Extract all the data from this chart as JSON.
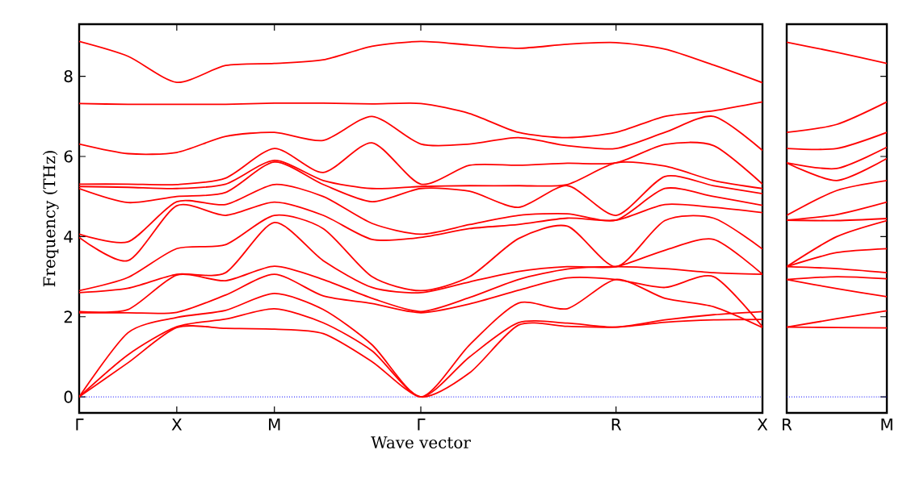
{
  "chart_data": [
    {
      "type": "line",
      "xlabel": "Wave vector",
      "ylabel": "Frequency (THz)",
      "categories": [
        "Γ",
        null,
        "X",
        null,
        "M",
        null,
        null,
        "Γ",
        null,
        null,
        null,
        "R",
        null,
        null,
        "X"
      ],
      "ylim": [
        -0.4,
        9.3
      ],
      "yticks": [
        0,
        2,
        4,
        6,
        8
      ],
      "ref_lines": [
        {
          "axis": "y",
          "value": 0,
          "color": "#0000ff",
          "line_style": "dotted"
        }
      ],
      "series": [
        {
          "color": "#ff0000",
          "values": [
            0,
            0.85,
            1.73,
            1.71,
            1.69,
            1.58,
            0.88,
            0,
            0.6,
            1.79,
            1.76,
            1.74,
            1.86,
            1.92,
            1.93
          ]
        },
        {
          "color": "#ff0000",
          "values": [
            0,
            1.05,
            1.75,
            1.94,
            2.2,
            1.85,
            1.15,
            0,
            1.0,
            1.85,
            1.84,
            1.74,
            1.92,
            2.05,
            2.13
          ]
        },
        {
          "color": "#ff0000",
          "values": [
            0,
            1.6,
            1.98,
            2.16,
            2.58,
            2.18,
            1.3,
            0,
            1.3,
            2.34,
            2.2,
            2.93,
            2.46,
            2.25,
            1.73
          ]
        },
        {
          "color": "#ff0000",
          "values": [
            2.1,
            2.1,
            2.11,
            2.54,
            3.06,
            2.52,
            2.33,
            2.1,
            2.32,
            2.66,
            2.97,
            2.93,
            2.73,
            3.0,
            1.75
          ]
        },
        {
          "color": "#ff0000",
          "values": [
            2.13,
            2.18,
            3.04,
            2.9,
            3.26,
            2.93,
            2.46,
            2.13,
            2.48,
            2.93,
            3.19,
            3.25,
            3.2,
            3.1,
            3.06
          ]
        },
        {
          "color": "#ff0000",
          "values": [
            2.6,
            2.71,
            3.06,
            3.1,
            4.35,
            3.4,
            2.73,
            2.6,
            2.87,
            3.13,
            3.25,
            3.25,
            3.66,
            3.93,
            3.06
          ]
        },
        {
          "color": "#ff0000",
          "values": [
            2.65,
            2.98,
            3.7,
            3.8,
            4.53,
            4.2,
            3.0,
            2.65,
            3.0,
            3.95,
            4.26,
            3.25,
            4.4,
            4.46,
            3.69
          ]
        },
        {
          "color": "#ff0000",
          "values": [
            3.98,
            3.4,
            4.77,
            4.53,
            4.86,
            4.53,
            3.93,
            3.98,
            4.2,
            4.3,
            4.46,
            4.41,
            4.8,
            4.73,
            4.6
          ]
        },
        {
          "color": "#ff0000",
          "values": [
            4.06,
            3.87,
            4.87,
            4.8,
            5.3,
            5.0,
            4.33,
            4.06,
            4.3,
            4.53,
            4.57,
            4.41,
            5.2,
            5.0,
            4.78
          ]
        },
        {
          "color": "#ff0000",
          "values": [
            5.2,
            4.85,
            5.0,
            5.1,
            5.86,
            5.3,
            4.87,
            5.2,
            5.13,
            4.73,
            5.27,
            4.53,
            5.5,
            5.27,
            5.07
          ]
        },
        {
          "color": "#ff0000",
          "values": [
            5.25,
            5.23,
            5.2,
            5.31,
            5.9,
            5.4,
            5.2,
            5.25,
            5.27,
            5.27,
            5.3,
            5.84,
            5.76,
            5.4,
            5.2
          ]
        },
        {
          "color": "#ff0000",
          "values": [
            5.31,
            5.31,
            5.3,
            5.46,
            6.2,
            5.6,
            6.34,
            5.31,
            5.78,
            5.78,
            5.83,
            5.84,
            6.3,
            6.27,
            5.31
          ]
        },
        {
          "color": "#ff0000",
          "values": [
            6.31,
            6.07,
            6.1,
            6.5,
            6.6,
            6.4,
            7.0,
            6.31,
            6.31,
            6.47,
            6.27,
            6.2,
            6.6,
            7.0,
            6.15
          ]
        },
        {
          "color": "#ff0000",
          "values": [
            7.32,
            7.3,
            7.3,
            7.3,
            7.33,
            7.33,
            7.31,
            7.32,
            7.07,
            6.6,
            6.47,
            6.6,
            7.0,
            7.14,
            7.36
          ]
        },
        {
          "color": "#ff0000",
          "values": [
            8.87,
            8.5,
            7.85,
            8.27,
            8.32,
            8.41,
            8.75,
            8.87,
            8.78,
            8.7,
            8.8,
            8.84,
            8.68,
            8.28,
            7.84
          ]
        }
      ]
    },
    {
      "type": "line",
      "tick_labels": "x",
      "categories": [
        "R",
        null,
        "M"
      ],
      "ylim": [
        -0.4,
        9.3
      ],
      "yticks": [
        0,
        2,
        4,
        6,
        8
      ],
      "ref_lines": [
        {
          "axis": "y",
          "value": 0,
          "color": "#0000ff",
          "line_style": "dotted"
        }
      ],
      "series": [
        {
          "color": "#ff0000",
          "values": [
            1.74,
            1.73,
            1.72
          ]
        },
        {
          "color": "#ff0000",
          "values": [
            1.74,
            1.95,
            2.15
          ]
        },
        {
          "color": "#ff0000",
          "values": [
            2.93,
            2.7,
            2.5
          ]
        },
        {
          "color": "#ff0000",
          "values": [
            2.93,
            3.0,
            2.95
          ]
        },
        {
          "color": "#ff0000",
          "values": [
            3.25,
            3.2,
            3.1
          ]
        },
        {
          "color": "#ff0000",
          "values": [
            3.25,
            3.6,
            3.7
          ]
        },
        {
          "color": "#ff0000",
          "values": [
            3.25,
            4.0,
            4.4
          ]
        },
        {
          "color": "#ff0000",
          "values": [
            4.41,
            4.4,
            4.45
          ]
        },
        {
          "color": "#ff0000",
          "values": [
            4.41,
            4.55,
            4.86
          ]
        },
        {
          "color": "#ff0000",
          "values": [
            4.53,
            5.15,
            5.4
          ]
        },
        {
          "color": "#ff0000",
          "values": [
            5.84,
            5.4,
            5.95
          ]
        },
        {
          "color": "#ff0000",
          "values": [
            5.84,
            5.7,
            6.23
          ]
        },
        {
          "color": "#ff0000",
          "values": [
            6.2,
            6.2,
            6.6
          ]
        },
        {
          "color": "#ff0000",
          "values": [
            6.6,
            6.8,
            7.36
          ]
        },
        {
          "color": "#ff0000",
          "values": [
            8.85,
            8.6,
            8.32
          ]
        }
      ]
    }
  ]
}
